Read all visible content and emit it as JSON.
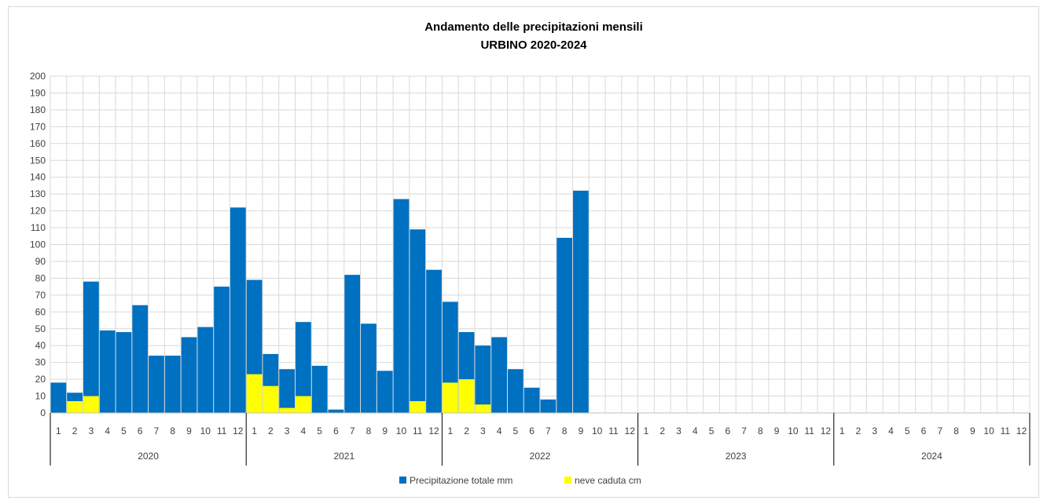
{
  "chart_data": {
    "type": "bar",
    "title": "Andamento delle precipitazioni mensili",
    "subtitle": "URBINO 2020-2024",
    "xlabel": "",
    "ylabel": "",
    "ylim": [
      0,
      200
    ],
    "ytick_step": 10,
    "grid": true,
    "legend_position": "bottom",
    "years": [
      "2020",
      "2021",
      "2022",
      "2023",
      "2024"
    ],
    "months": [
      "1",
      "2",
      "3",
      "4",
      "5",
      "6",
      "7",
      "8",
      "9",
      "10",
      "11",
      "12"
    ],
    "series": [
      {
        "name": "Precipitazione totale mm",
        "color": "#0070c0",
        "values": [
          18,
          12,
          78,
          49,
          48,
          64,
          34,
          34,
          45,
          51,
          75,
          122,
          79,
          35,
          26,
          54,
          28,
          2,
          82,
          53,
          25,
          127,
          109,
          85,
          66,
          48,
          40,
          45,
          26,
          15,
          8,
          104,
          132,
          null,
          null,
          null,
          null,
          null,
          null,
          null,
          null,
          null,
          null,
          null,
          null,
          null,
          null,
          null,
          null,
          null,
          null,
          null,
          null,
          null,
          null,
          null,
          null,
          null,
          null,
          null
        ]
      },
      {
        "name": "neve caduta cm",
        "color": "#ffff00",
        "values": [
          0,
          7,
          10,
          0,
          0,
          0,
          0,
          0,
          0,
          0,
          0,
          0,
          23,
          16,
          3,
          10,
          0,
          0,
          0,
          0,
          0,
          0,
          7,
          0,
          18,
          20,
          5,
          0,
          0,
          0,
          0,
          0,
          0,
          null,
          null,
          null,
          null,
          null,
          null,
          null,
          null,
          null,
          null,
          null,
          null,
          null,
          null,
          null,
          null,
          null,
          null,
          null,
          null,
          null,
          null,
          null,
          null,
          null,
          null,
          null
        ]
      }
    ]
  }
}
